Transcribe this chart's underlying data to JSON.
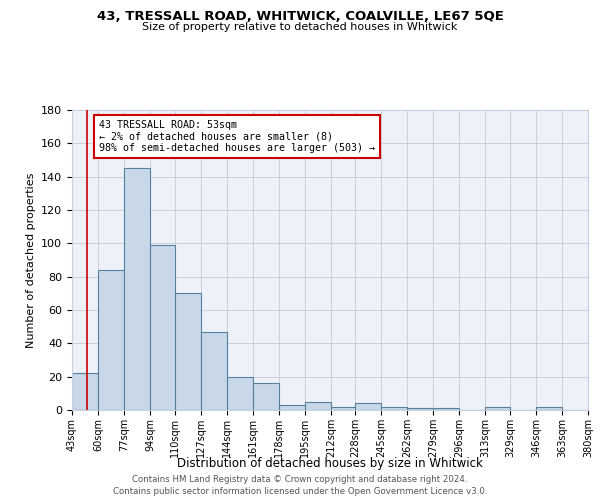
{
  "title": "43, TRESSALL ROAD, WHITWICK, COALVILLE, LE67 5QE",
  "subtitle": "Size of property relative to detached houses in Whitwick",
  "xlabel": "Distribution of detached houses by size in Whitwick",
  "ylabel": "Number of detached properties",
  "bin_edges": [
    43,
    60,
    77,
    94,
    110,
    127,
    144,
    161,
    178,
    195,
    212,
    228,
    245,
    262,
    279,
    296,
    313,
    329,
    346,
    363,
    380
  ],
  "bin_labels": [
    "43sqm",
    "60sqm",
    "77sqm",
    "94sqm",
    "110sqm",
    "127sqm",
    "144sqm",
    "161sqm",
    "178sqm",
    "195sqm",
    "212sqm",
    "228sqm",
    "245sqm",
    "262sqm",
    "279sqm",
    "296sqm",
    "313sqm",
    "329sqm",
    "346sqm",
    "363sqm",
    "380sqm"
  ],
  "counts": [
    22,
    84,
    145,
    99,
    70,
    47,
    20,
    16,
    3,
    5,
    2,
    4,
    2,
    1,
    1,
    0,
    2,
    0,
    2,
    0
  ],
  "bar_facecolor": "#c8d8e8",
  "bar_edgecolor": "#5580a0",
  "grid_color": "#c8d0dc",
  "background_color": "#eef2f8",
  "red_line_x": 53,
  "annotation_text": "43 TRESSALL ROAD: 53sqm\n← 2% of detached houses are smaller (8)\n98% of semi-detached houses are larger (503) →",
  "annotation_box_edgecolor": "#cc0000",
  "ylim": [
    0,
    180
  ],
  "yticks": [
    0,
    20,
    40,
    60,
    80,
    100,
    120,
    140,
    160,
    180
  ],
  "footer_line1": "Contains HM Land Registry data © Crown copyright and database right 2024.",
  "footer_line2": "Contains public sector information licensed under the Open Government Licence v3.0."
}
